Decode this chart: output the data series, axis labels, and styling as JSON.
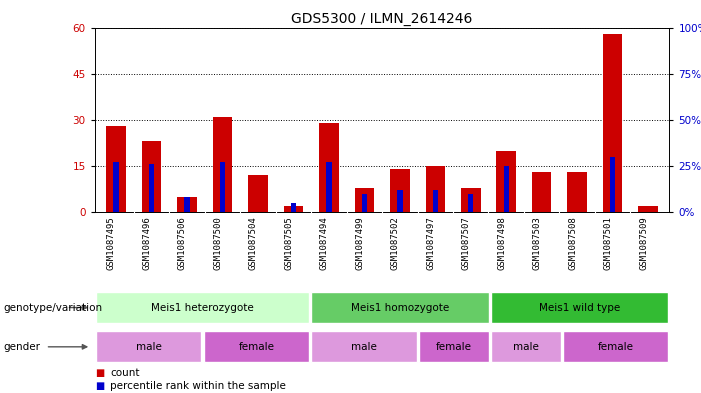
{
  "title": "GDS5300 / ILMN_2614246",
  "samples": [
    "GSM1087495",
    "GSM1087496",
    "GSM1087506",
    "GSM1087500",
    "GSM1087504",
    "GSM1087505",
    "GSM1087494",
    "GSM1087499",
    "GSM1087502",
    "GSM1087497",
    "GSM1087507",
    "GSM1087498",
    "GSM1087503",
    "GSM1087508",
    "GSM1087501",
    "GSM1087509"
  ],
  "counts": [
    28,
    23,
    5,
    31,
    12,
    2,
    29,
    8,
    14,
    15,
    8,
    20,
    13,
    13,
    58,
    2
  ],
  "percentiles": [
    27,
    26,
    8,
    27,
    0,
    5,
    27,
    10,
    12,
    12,
    10,
    25,
    0,
    0,
    30,
    0
  ],
  "ylim_left": [
    0,
    60
  ],
  "ylim_right": [
    0,
    100
  ],
  "yticks_left": [
    0,
    15,
    30,
    45,
    60
  ],
  "yticks_right": [
    0,
    25,
    50,
    75,
    100
  ],
  "bar_color": "#cc0000",
  "percentile_color": "#0000cc",
  "bar_width": 0.55,
  "genotype_groups": [
    {
      "label": "Meis1 heterozygote",
      "start": 0,
      "end": 6,
      "color": "#ccffcc"
    },
    {
      "label": "Meis1 homozygote",
      "start": 6,
      "end": 11,
      "color": "#66cc66"
    },
    {
      "label": "Meis1 wild type",
      "start": 11,
      "end": 16,
      "color": "#33bb33"
    }
  ],
  "gender_groups": [
    {
      "label": "male",
      "start": 0,
      "end": 3
    },
    {
      "label": "female",
      "start": 3,
      "end": 6
    },
    {
      "label": "male",
      "start": 6,
      "end": 9
    },
    {
      "label": "female",
      "start": 9,
      "end": 11
    },
    {
      "label": "male",
      "start": 11,
      "end": 13
    },
    {
      "label": "female",
      "start": 13,
      "end": 16
    }
  ],
  "gender_color_male": "#dd99dd",
  "gender_color_female": "#cc66cc",
  "sample_bg_color": "#cccccc",
  "title_fontsize": 10,
  "axis_label_fontsize": 7,
  "sample_label_fontsize": 6.5
}
